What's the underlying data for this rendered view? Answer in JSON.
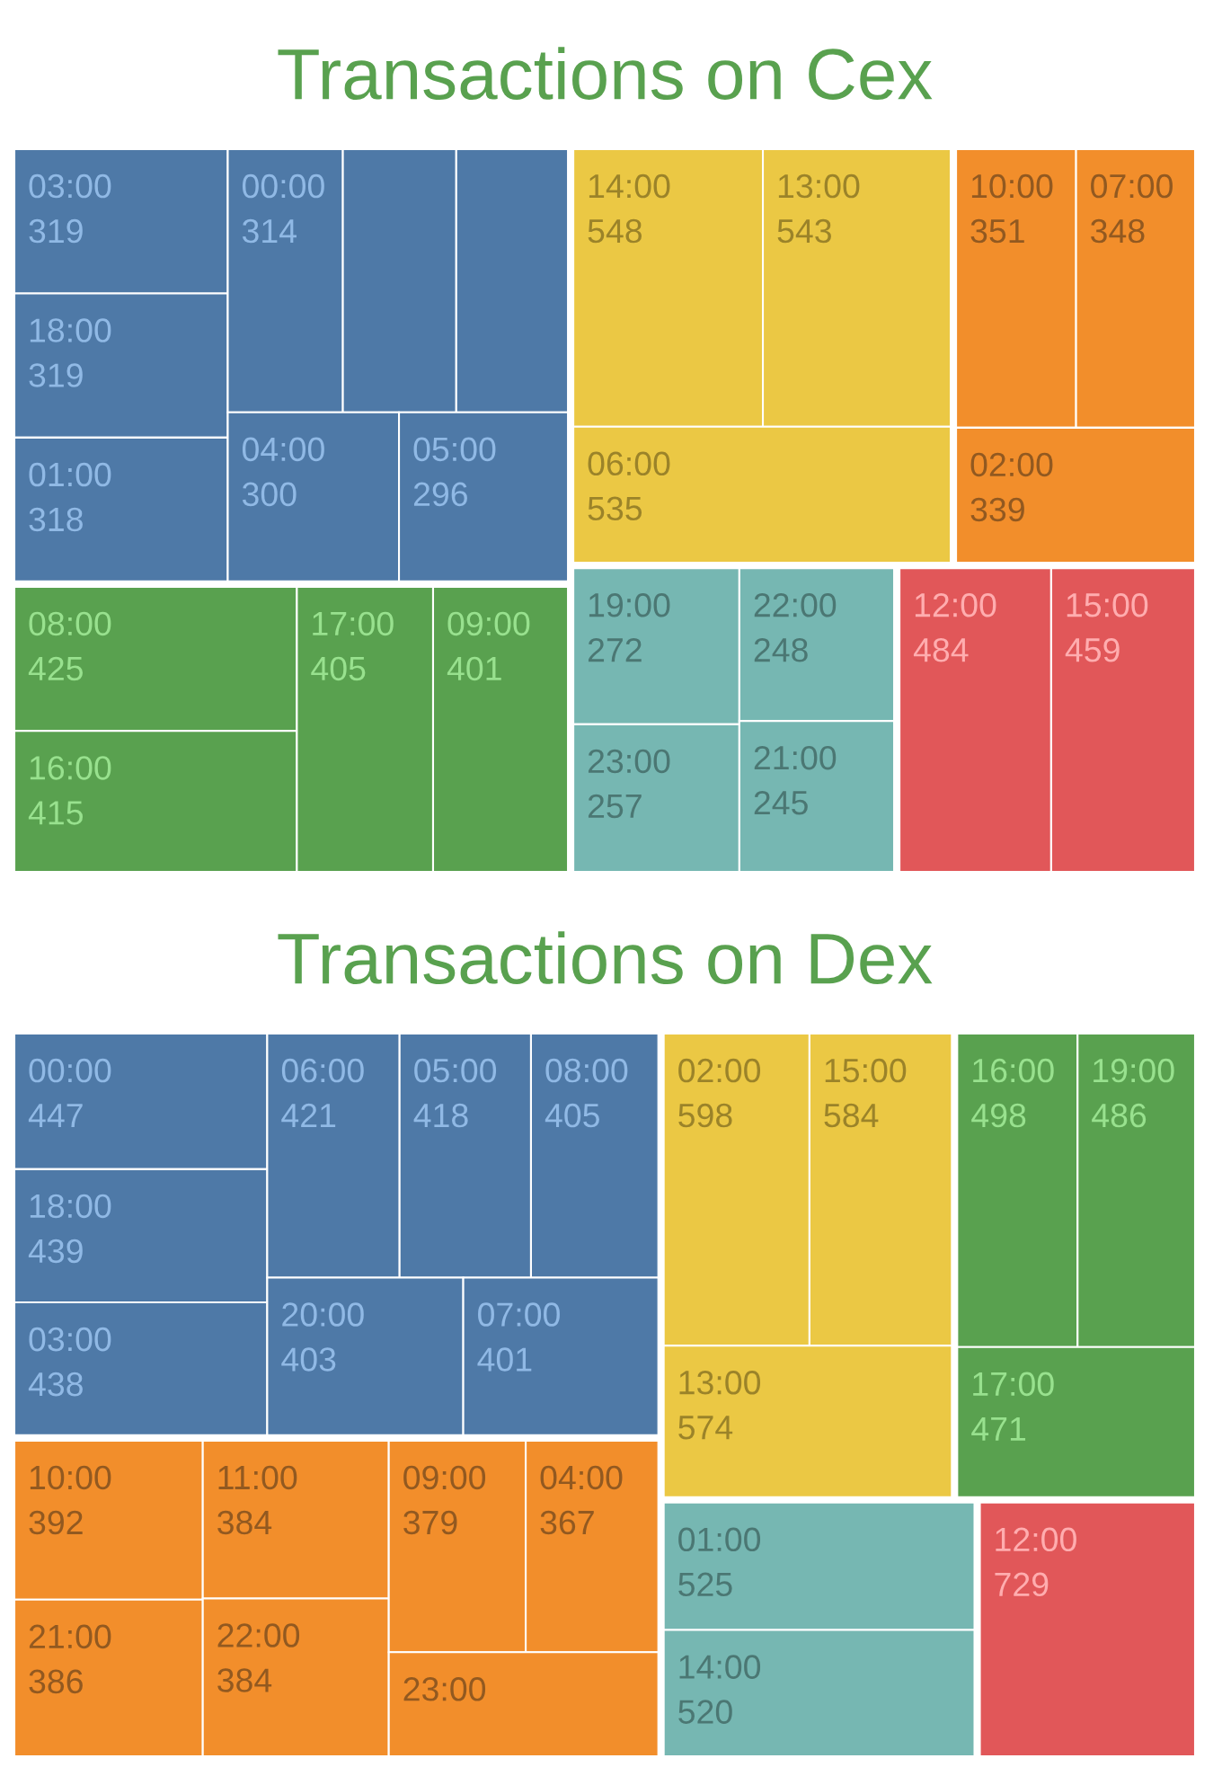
{
  "chart_data": [
    {
      "type": "other",
      "title": "Transactions on Cex",
      "categories": [
        "03:00",
        "18:00",
        "01:00",
        "00:00",
        null,
        null,
        "04:00",
        "05:00",
        "08:00",
        "16:00",
        "17:00",
        "09:00",
        "14:00",
        "13:00",
        "06:00",
        "10:00",
        "07:00",
        "02:00",
        "19:00",
        "23:00",
        "22:00",
        "21:00",
        "12:00",
        "15:00"
      ],
      "values": [
        319,
        319,
        318,
        314,
        null,
        null,
        300,
        296,
        425,
        415,
        405,
        401,
        548,
        543,
        535,
        351,
        348,
        339,
        272,
        257,
        248,
        245,
        484,
        459
      ],
      "value_labels": [
        "319",
        "319",
        "318",
        "314",
        null,
        null,
        "300",
        "296",
        "425",
        "415",
        "405",
        "401",
        "548",
        "543",
        "535",
        "351",
        "348",
        "339",
        "272",
        "257",
        "248",
        "245",
        "484",
        "459"
      ],
      "colors": [
        "#4e79a7",
        "#4e79a7",
        "#4e79a7",
        "#4e79a7",
        "#4e79a7",
        "#4e79a7",
        "#4e79a7",
        "#4e79a7",
        "#59a14f",
        "#59a14f",
        "#59a14f",
        "#59a14f",
        "#ebc844",
        "#ebc844",
        "#ebc844",
        "#f28e2b",
        "#f28e2b",
        "#f28e2b",
        "#76b7b2",
        "#76b7b2",
        "#76b7b2",
        "#76b7b2",
        "#e15759",
        "#e15759"
      ]
    },
    {
      "type": "other",
      "title": "Transactions on Dex",
      "categories": [
        "00:00",
        "18:00",
        "03:00",
        "06:00",
        "05:00",
        "08:00",
        "20:00",
        "07:00",
        "10:00",
        "21:00",
        "11:00",
        "22:00",
        "09:00",
        "04:00",
        "23:00",
        "02:00",
        "15:00",
        "13:00",
        "16:00",
        "19:00",
        "17:00",
        "01:00",
        "14:00",
        "12:00"
      ],
      "values": [
        447,
        439,
        438,
        421,
        418,
        405,
        403,
        401,
        392,
        386,
        384,
        384,
        379,
        367,
        null,
        598,
        584,
        574,
        498,
        486,
        471,
        525,
        520,
        729
      ],
      "value_labels": [
        "447",
        "439",
        "438",
        "421",
        "418",
        "405",
        "403",
        "401",
        "392",
        "386",
        "384",
        "384",
        "379",
        "367",
        null,
        "598",
        "584",
        "574",
        "498",
        "486",
        "471",
        "525",
        "520",
        "729"
      ],
      "colors": [
        "#4e79a7",
        "#4e79a7",
        "#4e79a7",
        "#4e79a7",
        "#4e79a7",
        "#4e79a7",
        "#4e79a7",
        "#4e79a7",
        "#f28e2b",
        "#f28e2b",
        "#f28e2b",
        "#f28e2b",
        "#f28e2b",
        "#f28e2b",
        "#f28e2b",
        "#ebc844",
        "#ebc844",
        "#ebc844",
        "#59a14f",
        "#59a14f",
        "#59a14f",
        "#76b7b2",
        "#76b7b2",
        "#e15759"
      ]
    }
  ]
}
